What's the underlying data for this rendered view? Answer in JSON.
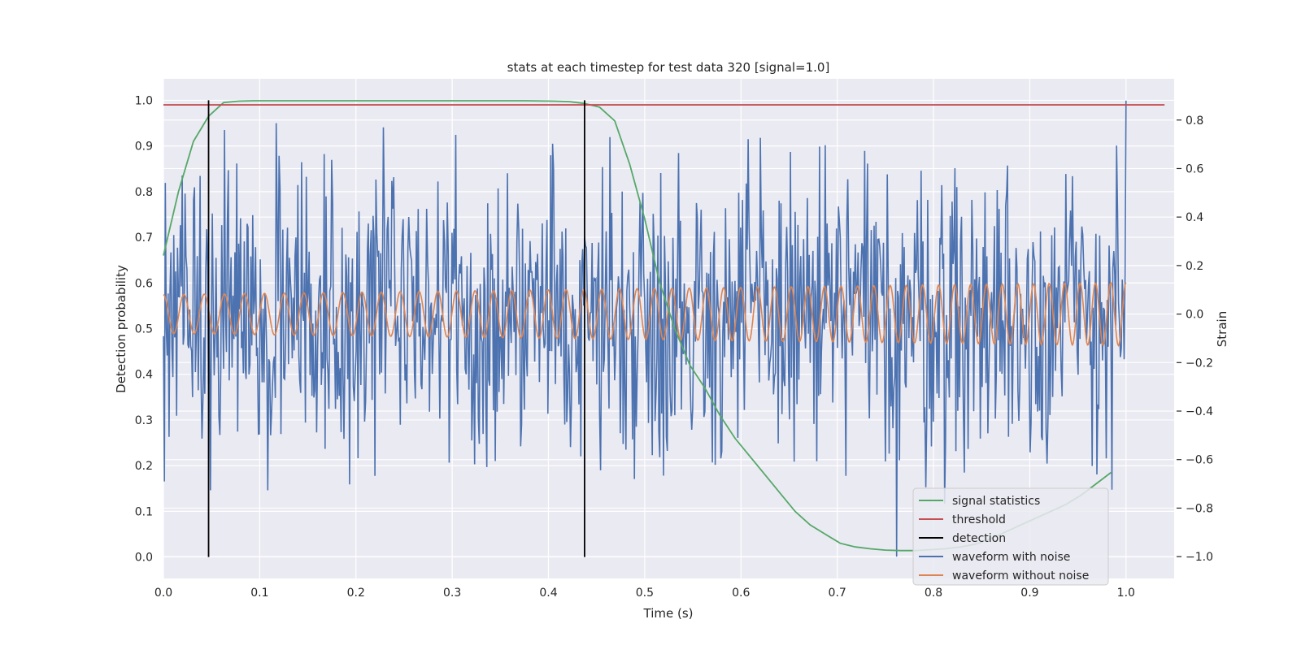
{
  "chart_data": {
    "type": "line",
    "title": "stats at each timestep for test data 320 [signal=1.0]",
    "xlabel": "Time (s)",
    "ylabel": "Detection probability",
    "ylabel_right": "Strain",
    "xlim": [
      0.0,
      1.05
    ],
    "ylim": [
      -0.047,
      1.047
    ],
    "ylim_right": [
      -1.09,
      0.97
    ],
    "x_ticks": [
      "0.0",
      "0.1",
      "0.2",
      "0.3",
      "0.4",
      "0.5",
      "0.6",
      "0.7",
      "0.8",
      "0.9",
      "1.0"
    ],
    "y_ticks": [
      "0.0",
      "0.1",
      "0.2",
      "0.3",
      "0.4",
      "0.5",
      "0.6",
      "0.7",
      "0.8",
      "0.9",
      "1.0"
    ],
    "y_ticks_right": [
      "−1.0",
      "−0.8",
      "−0.6",
      "−0.4",
      "−0.2",
      "0.0",
      "0.2",
      "0.4",
      "0.6",
      "0.8"
    ],
    "grid": true,
    "legend_position": "lower-right",
    "colors": {
      "background": "#eaeaf2",
      "signal_statistics": "#55a868",
      "threshold": "#c44e52",
      "detection": "#000000",
      "waveform_with_noise": "#4c72b0",
      "waveform_without_noise": "#dd8452"
    },
    "series": [
      {
        "name": "signal statistics",
        "axis": "left",
        "x": [
          0.0,
          0.0156,
          0.0312,
          0.0469,
          0.0625,
          0.0781,
          0.0938,
          0.1094,
          0.125,
          0.25,
          0.375,
          0.4062,
          0.4219,
          0.4375,
          0.4531,
          0.4688,
          0.4844,
          0.5,
          0.5156,
          0.5312,
          0.5469,
          0.5625,
          0.5781,
          0.5938,
          0.6094,
          0.625,
          0.6406,
          0.6562,
          0.6719,
          0.6875,
          0.7031,
          0.7188,
          0.7344,
          0.75,
          0.7656,
          0.7812,
          0.7969,
          0.8125,
          0.8281,
          0.8438,
          0.8594,
          0.875,
          0.8906,
          0.9062,
          0.9219,
          0.9375,
          0.9531,
          0.9688,
          0.9844
        ],
        "y": [
          0.66,
          0.8,
          0.91,
          0.965,
          0.995,
          0.998,
          0.999,
          0.999,
          0.999,
          0.999,
          0.999,
          0.998,
          0.997,
          0.993,
          0.985,
          0.955,
          0.86,
          0.74,
          0.6,
          0.5,
          0.42,
          0.37,
          0.31,
          0.26,
          0.22,
          0.18,
          0.14,
          0.1,
          0.07,
          0.05,
          0.03,
          0.022,
          0.018,
          0.015,
          0.014,
          0.014,
          0.016,
          0.018,
          0.022,
          0.028,
          0.04,
          0.055,
          0.07,
          0.085,
          0.1,
          0.115,
          0.135,
          0.16,
          0.185
        ]
      },
      {
        "name": "threshold",
        "axis": "left",
        "x": [
          0.0,
          1.04
        ],
        "y": [
          0.99,
          0.99
        ]
      },
      {
        "name": "detection",
        "axis": "left",
        "x": [
          0.0469,
          0.4375
        ],
        "y_range": [
          0.0,
          1.0
        ]
      },
      {
        "name": "waveform with noise",
        "axis": "right",
        "x_range": [
          0.0,
          1.0
        ],
        "y_range": [
          -1.0,
          0.88
        ]
      },
      {
        "name": "waveform without noise",
        "axis": "right",
        "x_range": [
          0.0,
          1.0
        ],
        "amplitude_start": 0.08,
        "amplitude_end": 0.13,
        "cycles": 55
      }
    ]
  }
}
